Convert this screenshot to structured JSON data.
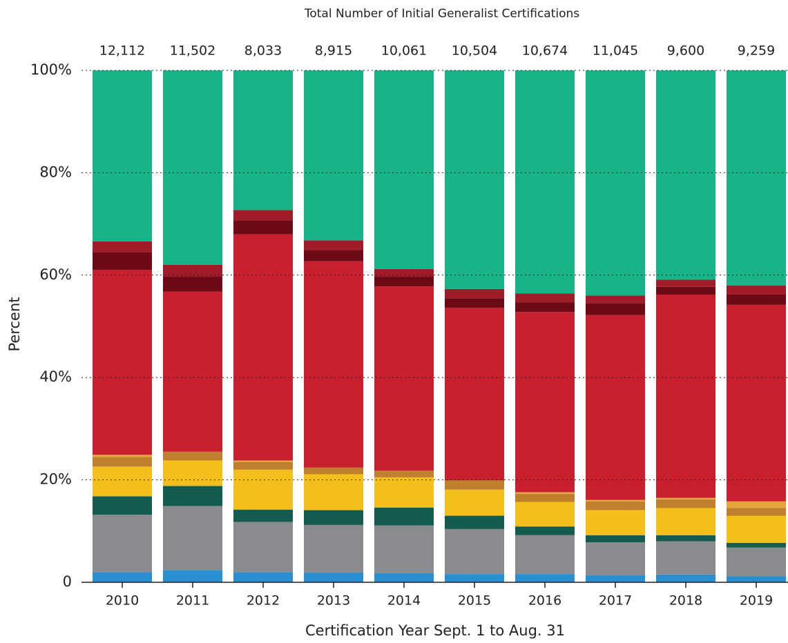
{
  "chart_data": {
    "type": "stacked_bar",
    "title": "Total Number of Initial Generalist Certifications",
    "xlabel": "Certification Year Sept. 1 to Aug. 31",
    "ylabel": "Percent",
    "categories": [
      "2010",
      "2011",
      "2012",
      "2013",
      "2014",
      "2015",
      "2016",
      "2017",
      "2018",
      "2019"
    ],
    "totals": [
      {
        "value": 12112,
        "label": "12,112"
      },
      {
        "value": 11502,
        "label": "11,502"
      },
      {
        "value": 8033,
        "label": "8,033"
      },
      {
        "value": 8915,
        "label": "8,915"
      },
      {
        "value": 10061,
        "label": "10,061"
      },
      {
        "value": 10504,
        "label": "10,504"
      },
      {
        "value": 10674,
        "label": "10,674"
      },
      {
        "value": 11045,
        "label": "11,045"
      },
      {
        "value": 9600,
        "label": "9,600"
      },
      {
        "value": 9259,
        "label": "9,259"
      }
    ],
    "series": [
      {
        "color": "#2a8fd0",
        "values": [
          2.0,
          2.4,
          2.0,
          1.9,
          1.8,
          1.6,
          1.6,
          1.4,
          1.5,
          1.2
        ]
      },
      {
        "color": "#8a8b8f",
        "values": [
          11.2,
          12.5,
          9.8,
          9.3,
          9.3,
          8.8,
          7.6,
          6.4,
          6.5,
          5.6
        ]
      },
      {
        "color": "#135c4f",
        "values": [
          3.6,
          3.9,
          2.4,
          2.9,
          3.5,
          2.6,
          1.7,
          1.4,
          1.2,
          0.9
        ]
      },
      {
        "color": "#f4bf1a",
        "values": [
          5.8,
          5.0,
          7.8,
          7.0,
          5.9,
          5.1,
          4.8,
          4.9,
          5.3,
          5.3
        ]
      },
      {
        "color": "#c07f2c",
        "values": [
          1.9,
          1.7,
          1.5,
          1.3,
          1.3,
          1.8,
          1.6,
          1.7,
          1.7,
          1.5
        ]
      },
      {
        "color": "#e4a53a",
        "values": [
          0.4,
          0,
          0.3,
          0,
          0,
          0,
          0.3,
          0.3,
          0.3,
          1.3
        ]
      },
      {
        "color": "#c8202f",
        "values": [
          36.1,
          31.3,
          44.2,
          40.3,
          36.0,
          33.7,
          35.2,
          36.1,
          39.7,
          38.4
        ]
      },
      {
        "color": "#6d0a16",
        "values": [
          3.5,
          2.9,
          2.7,
          2.2,
          1.9,
          1.9,
          1.9,
          2.3,
          1.5,
          2.0
        ]
      },
      {
        "color": "#a01c28",
        "values": [
          2.1,
          2.3,
          2.0,
          1.9,
          1.5,
          1.8,
          1.7,
          1.5,
          1.4,
          1.8
        ]
      },
      {
        "color": "#19b38a",
        "values": [
          33.4,
          38.0,
          27.3,
          33.2,
          38.8,
          42.7,
          43.6,
          44.0,
          40.9,
          42.0
        ]
      }
    ],
    "ylim": [
      0,
      100
    ],
    "yticks": [
      0,
      {
        "value": 20,
        "label": "20%"
      },
      {
        "value": 40,
        "label": "40%"
      },
      {
        "value": 60,
        "label": "60%"
      },
      {
        "value": 80,
        "label": "80%"
      },
      {
        "value": 100,
        "label": "100%"
      }
    ],
    "grid": true
  }
}
